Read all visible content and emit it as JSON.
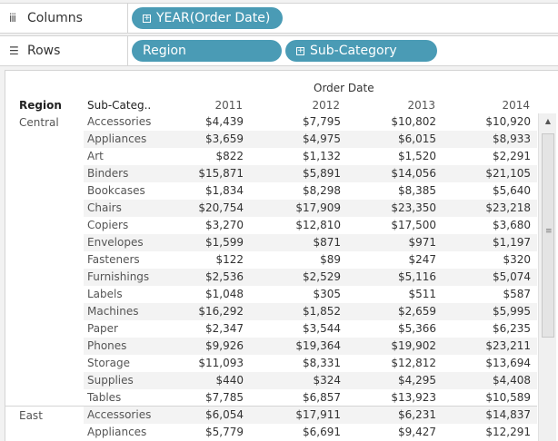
{
  "shelves": {
    "columns": {
      "label": "Columns",
      "icon": "iii",
      "pills": [
        "YEAR(Order Date)"
      ]
    },
    "rows": {
      "label": "Rows",
      "icon": "☰",
      "pills": [
        "Region",
        "Sub-Category"
      ]
    }
  },
  "header": {
    "region_col": "Region",
    "subcat_col": "Sub-Categ..",
    "group_title": "Order Date",
    "years": [
      "2011",
      "2012",
      "2013",
      "2014"
    ]
  },
  "rows": [
    {
      "region": "Central",
      "subcat": "Accessories",
      "values": [
        "$4,439",
        "$7,795",
        "$10,802",
        "$10,920"
      ]
    },
    {
      "region": "",
      "subcat": "Appliances",
      "values": [
        "$3,659",
        "$4,975",
        "$6,015",
        "$8,933"
      ]
    },
    {
      "region": "",
      "subcat": "Art",
      "values": [
        "$822",
        "$1,132",
        "$1,520",
        "$2,291"
      ]
    },
    {
      "region": "",
      "subcat": "Binders",
      "values": [
        "$15,871",
        "$5,891",
        "$14,056",
        "$21,105"
      ]
    },
    {
      "region": "",
      "subcat": "Bookcases",
      "values": [
        "$1,834",
        "$8,298",
        "$8,385",
        "$5,640"
      ]
    },
    {
      "region": "",
      "subcat": "Chairs",
      "values": [
        "$20,754",
        "$17,909",
        "$23,350",
        "$23,218"
      ]
    },
    {
      "region": "",
      "subcat": "Copiers",
      "values": [
        "$3,270",
        "$12,810",
        "$17,500",
        "$3,680"
      ]
    },
    {
      "region": "",
      "subcat": "Envelopes",
      "values": [
        "$1,599",
        "$871",
        "$971",
        "$1,197"
      ]
    },
    {
      "region": "",
      "subcat": "Fasteners",
      "values": [
        "$122",
        "$89",
        "$247",
        "$320"
      ]
    },
    {
      "region": "",
      "subcat": "Furnishings",
      "values": [
        "$2,536",
        "$2,529",
        "$5,116",
        "$5,074"
      ]
    },
    {
      "region": "",
      "subcat": "Labels",
      "values": [
        "$1,048",
        "$305",
        "$511",
        "$587"
      ]
    },
    {
      "region": "",
      "subcat": "Machines",
      "values": [
        "$16,292",
        "$1,852",
        "$2,659",
        "$5,995"
      ]
    },
    {
      "region": "",
      "subcat": "Paper",
      "values": [
        "$2,347",
        "$3,544",
        "$5,366",
        "$6,235"
      ]
    },
    {
      "region": "",
      "subcat": "Phones",
      "values": [
        "$9,926",
        "$19,364",
        "$19,902",
        "$23,211"
      ]
    },
    {
      "region": "",
      "subcat": "Storage",
      "values": [
        "$11,093",
        "$8,331",
        "$12,812",
        "$13,694"
      ]
    },
    {
      "region": "",
      "subcat": "Supplies",
      "values": [
        "$440",
        "$324",
        "$4,295",
        "$4,408"
      ]
    },
    {
      "region": "",
      "subcat": "Tables",
      "values": [
        "$7,785",
        "$6,857",
        "$13,923",
        "$10,589"
      ]
    },
    {
      "region": "East",
      "subcat": "Accessories",
      "values": [
        "$6,054",
        "$17,911",
        "$6,231",
        "$14,837"
      ]
    },
    {
      "region": "",
      "subcat": "Appliances",
      "values": [
        "$5,779",
        "$6,691",
        "$9,427",
        "$12,291"
      ]
    }
  ],
  "colors": {
    "pill": "#4a9bb5",
    "band": "#f3f3f3",
    "shelf_bg": "#ffffff",
    "page_bg": "#f2f2f2"
  }
}
